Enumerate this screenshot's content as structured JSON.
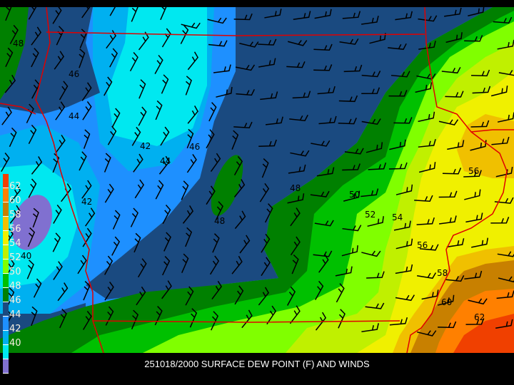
{
  "title": "251018/2000 SURFACE DEW POINT (F) AND WINDS",
  "legend": {
    "labels": [
      "62",
      "60",
      "58",
      "56",
      "54",
      "52",
      "50",
      "48",
      "46",
      "44",
      "42",
      "40"
    ],
    "colors": [
      "#f04000",
      "#ff8000",
      "#c88000",
      "#f0c000",
      "#f0f000",
      "#c0f000",
      "#80ff00",
      "#00c000",
      "#008000",
      "#1a4a80",
      "#1e90ff",
      "#00b0f0",
      "#00e8f0",
      "#8070d0"
    ]
  },
  "contour_labels": [
    "48",
    "46",
    "44",
    "42",
    "44",
    "46",
    "48",
    "48",
    "50",
    "52",
    "54",
    "56",
    "56",
    "58",
    "60",
    "62",
    "42",
    "40"
  ],
  "colors": {
    "state_lines": "#e00000",
    "wind_barbs": "#000000"
  }
}
